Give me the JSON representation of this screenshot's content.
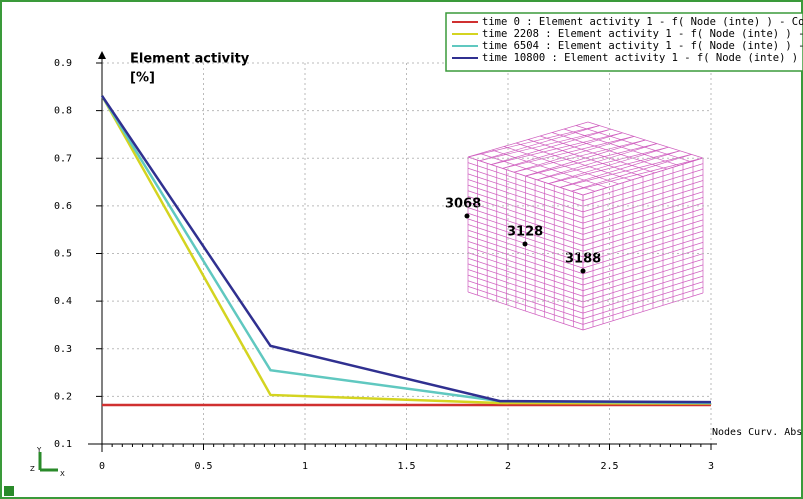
{
  "chart_data": {
    "type": "line",
    "y_label": [
      "Element activity",
      "[%]"
    ],
    "x_label": "Nodes Curv. Abs.",
    "x": [
      0,
      0.83,
      1.96,
      3
    ],
    "series": [
      {
        "name": "time 0 : Element activity  1 - f( Node (inte) ) -  Co",
        "color": "#d03030",
        "values": [
          0.182,
          0.182,
          0.182,
          0.182
        ]
      },
      {
        "name": "time 2208 : Element activity  1 - f( Node (inte) ) -",
        "color": "#d4d420",
        "values": [
          0.831,
          0.203,
          0.186,
          0.185
        ]
      },
      {
        "name": "time 6504 : Element activity  1 - f( Node (inte) ) -",
        "color": "#60c8c0",
        "values": [
          0.831,
          0.255,
          0.19,
          0.186
        ]
      },
      {
        "name": "time 10800 : Element activity  1 - f( Node (inte) )",
        "color": "#303090",
        "values": [
          0.831,
          0.306,
          0.19,
          0.188
        ]
      }
    ],
    "xlim": [
      0,
      3
    ],
    "ylim": [
      0.1,
      0.9
    ],
    "xticks": [
      0,
      0.5,
      1,
      1.5,
      2,
      2.5,
      3
    ],
    "yticks": [
      0.1,
      0.2,
      0.3,
      0.4,
      0.5,
      0.6,
      0.7,
      0.8,
      0.9
    ],
    "grid": true,
    "legend": "upper right",
    "node_labels": [
      "3068",
      "3128",
      "3188"
    ],
    "triad_labels": [
      "Y",
      "Z",
      "X"
    ]
  }
}
